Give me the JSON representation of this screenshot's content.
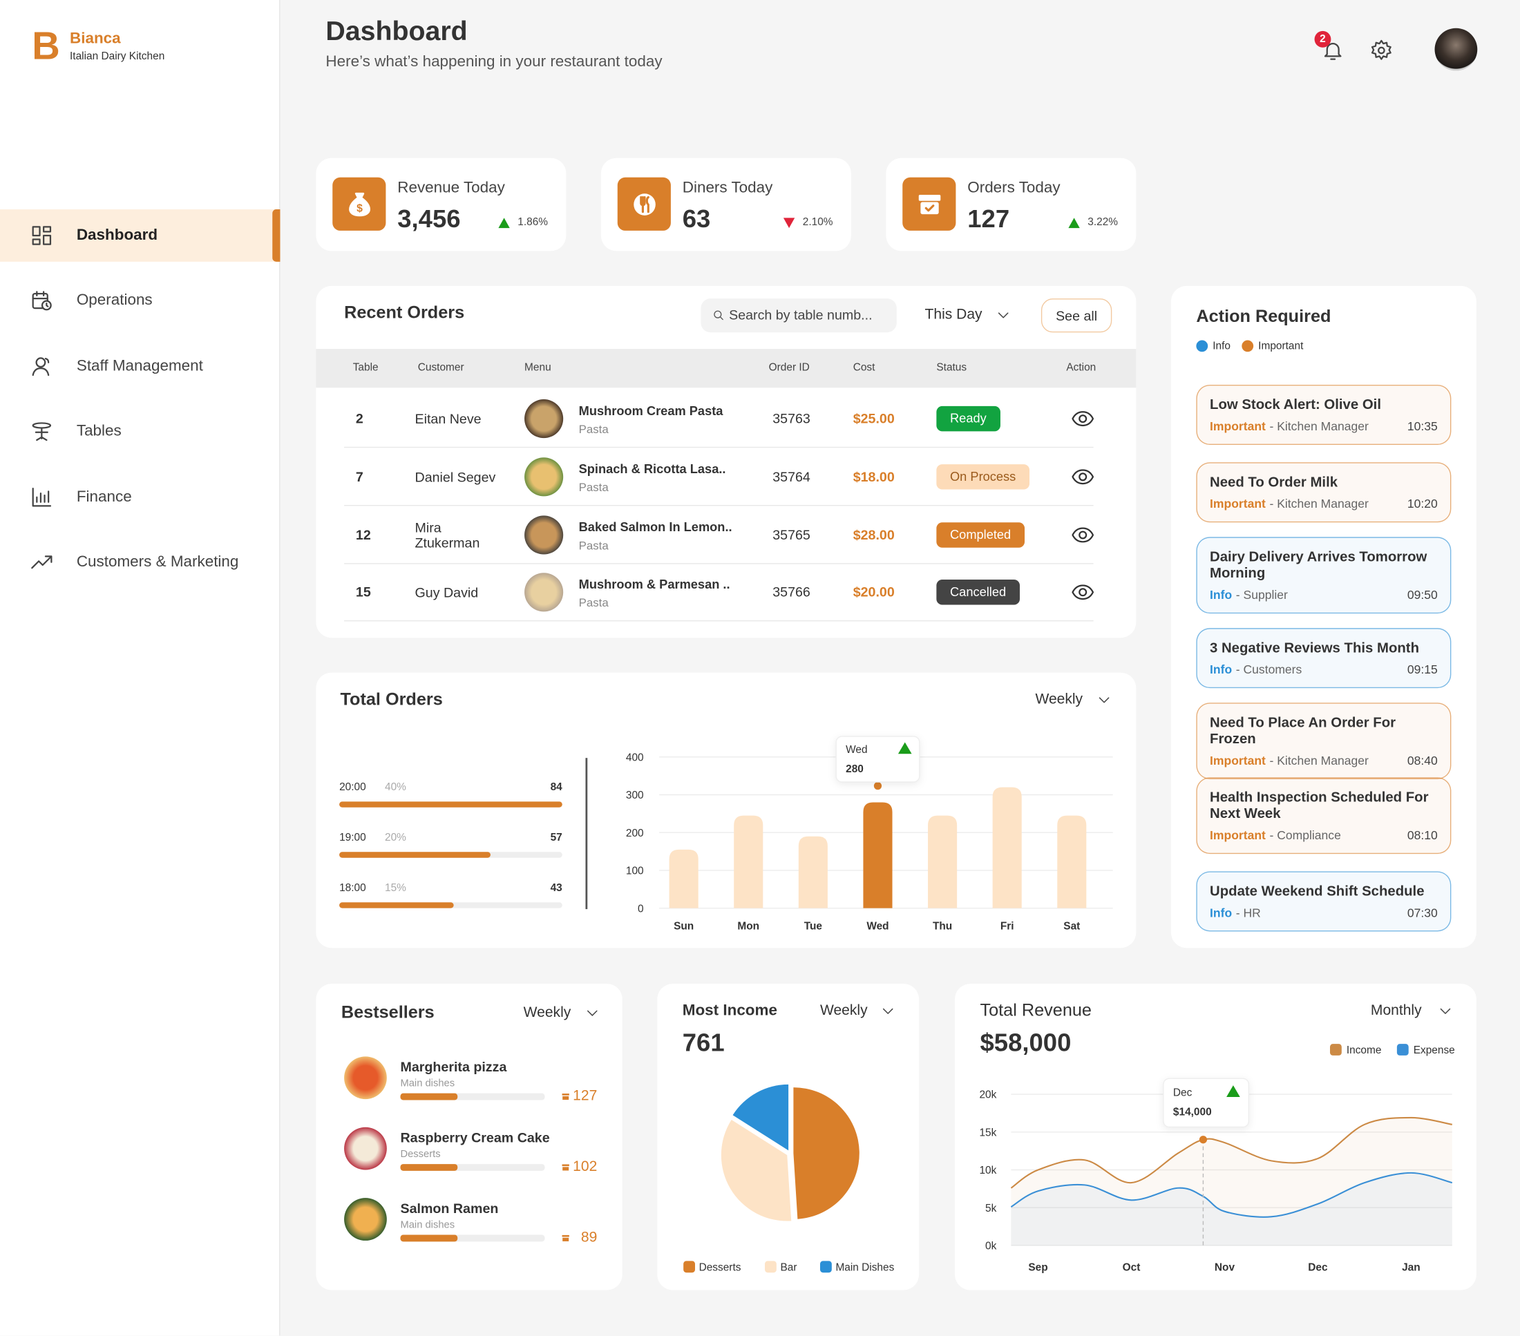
{
  "brand": {
    "initial": "B",
    "name": "Bianca",
    "tagline": "Italian Dairy Kitchen"
  },
  "nav": [
    {
      "label": "Dashboard",
      "active": true
    },
    {
      "label": "Operations",
      "active": false
    },
    {
      "label": "Staff Management",
      "active": false
    },
    {
      "label": "Tables",
      "active": false
    },
    {
      "label": "Finance",
      "active": false
    },
    {
      "label": "Customers & Marketing",
      "active": false
    }
  ],
  "header": {
    "title": "Dashboard",
    "subtitle": "Here’s what’s happening in your restaurant today",
    "notifications": 2
  },
  "stats": [
    {
      "label": "Revenue Today",
      "value": "3,456",
      "change": "1.86%",
      "trend": "up"
    },
    {
      "label": "Diners Today",
      "value": "63",
      "change": "2.10%",
      "trend": "down"
    },
    {
      "label": "Orders Today",
      "value": "127",
      "change": "3.22%",
      "trend": "up"
    }
  ],
  "recent_orders": {
    "title": "Recent Orders",
    "search_placeholder": "Search by table numb...",
    "filter": "This Day",
    "see_all": "See all",
    "columns": [
      "Table",
      "Customer",
      "Menu",
      "Order ID",
      "Cost",
      "Status",
      "Action"
    ],
    "rows": [
      {
        "table": "2",
        "customer": "Eitan Neve",
        "menu": "Mushroom Cream Pasta",
        "category": "Pasta",
        "order_id": "35763",
        "cost": "$25.00",
        "status": "Ready",
        "status_bg": "#12a340",
        "status_fg": "#ffffff"
      },
      {
        "table": "7",
        "customer": "Daniel Segev",
        "menu": "Spinach & Ricotta Lasa..",
        "category": "Pasta",
        "order_id": "35764",
        "cost": "$18.00",
        "status": "On Process",
        "status_bg": "#fddbb8",
        "status_fg": "#9a5a1c"
      },
      {
        "table": "12",
        "customer": "Mira Ztukerman",
        "menu": "Baked Salmon In Lemon..",
        "category": "Pasta",
        "order_id": "35765",
        "cost": "$28.00",
        "status": "Completed",
        "status_bg": "#d97f2a",
        "status_fg": "#ffffff"
      },
      {
        "table": "15",
        "customer": "Guy David",
        "menu": "Mushroom & Parmesan ..",
        "category": "Pasta",
        "order_id": "35766",
        "cost": "$20.00",
        "status": "Cancelled",
        "status_bg": "#444444",
        "status_fg": "#ffffff"
      }
    ]
  },
  "total_orders": {
    "hours": [
      {
        "time": "20:00",
        "share": "40%",
        "count": 84
      },
      {
        "time": "19:00",
        "share": "20%",
        "count": 57
      },
      {
        "time": "18:00",
        "share": "15%",
        "count": 43
      }
    ]
  },
  "action_required": {
    "title": "Action Required",
    "legend": [
      {
        "label": "Info",
        "color": "#2b8fd6"
      },
      {
        "label": "Important",
        "color": "#d97f2a"
      }
    ],
    "items": [
      {
        "title": "Low Stock Alert: Olive Oil",
        "level": "Important",
        "source": "- Kitchen Manager",
        "time": "10:35",
        "color": "#d97f2a"
      },
      {
        "title": "Need To Order Milk",
        "level": "Important",
        "source": "- Kitchen Manager",
        "time": "10:20",
        "color": "#d97f2a"
      },
      {
        "title": "Dairy Delivery Arrives Tomorrow Morning",
        "level": "Info",
        "source": "- Supplier",
        "time": "09:50",
        "color": "#2b8fd6"
      },
      {
        "title": "3 Negative Reviews This Month",
        "level": "Info",
        "source": "- Customers",
        "time": "09:15",
        "color": "#2b8fd6"
      },
      {
        "title": "Need To Place An Order For Frozen",
        "level": "Important",
        "source": "- Kitchen Manager",
        "time": "08:40",
        "color": "#d97f2a"
      },
      {
        "title": "Health Inspection Scheduled For Next Week",
        "level": "Important",
        "source": "- Compliance",
        "time": "08:10",
        "color": "#d97f2a"
      },
      {
        "title": "Update Weekend Shift Schedule",
        "level": "Info",
        "source": "- HR",
        "time": "07:30",
        "color": "#2b8fd6"
      }
    ]
  },
  "bestsellers": {
    "title": "Bestsellers",
    "filter": "Weekly",
    "items": [
      {
        "name": "Margherita pizza",
        "category": "Main dishes",
        "count": 127
      },
      {
        "name": "Raspberry Cream Cake",
        "category": "Desserts",
        "count": 102
      },
      {
        "name": "Salmon Ramen",
        "category": "Main dishes",
        "count": 89
      }
    ]
  },
  "chart_data": [
    {
      "type": "bar",
      "title": "Total Orders",
      "filter": "Weekly",
      "categories": [
        "Sun",
        "Mon",
        "Tue",
        "Wed",
        "Thu",
        "Fri",
        "Sat"
      ],
      "values": [
        155,
        245,
        190,
        280,
        245,
        320,
        245
      ],
      "color": "#fde3c6",
      "highlight": "Wed",
      "highlight_color": "#d97f2a",
      "ylim": [
        0,
        400
      ],
      "yticks": [
        0,
        100,
        200,
        300,
        400
      ],
      "grid": true
    },
    {
      "type": "pie",
      "title": "Most Income",
      "filter": "Weekly",
      "total": 761,
      "categories": [
        "Desserts",
        "Bar",
        "Main Dishes"
      ],
      "values": [
        49,
        35,
        16
      ],
      "colors": [
        "#d97f2a",
        "#fde3c6",
        "#2b8fd6"
      ],
      "legend": "bottom"
    },
    {
      "type": "line",
      "title": "Total Revenue",
      "filter": "Monthly",
      "total": "$58,000",
      "x": [
        -0.29,
        0,
        0.5,
        1,
        1.5,
        1.77,
        2,
        2.5,
        3,
        3.5,
        4,
        4.44
      ],
      "xlim": [
        -0.29,
        4.44
      ],
      "xticks": [
        {
          "value": 0,
          "label": "Sep"
        },
        {
          "value": 1,
          "label": "Oct"
        },
        {
          "value": 2,
          "label": "Nov"
        },
        {
          "value": 3,
          "label": "Dec"
        },
        {
          "value": 4,
          "label": "Jan"
        }
      ],
      "ylim": [
        0,
        20000
      ],
      "yticks": [
        {
          "value": 0,
          "label": "0k"
        },
        {
          "value": 5000,
          "label": "5k"
        },
        {
          "value": 10000,
          "label": "10k"
        },
        {
          "value": 15000,
          "label": "15k"
        },
        {
          "value": 20000,
          "label": "20k"
        }
      ],
      "grid": true,
      "legend": "top-right",
      "tooltip_label": "Dec",
      "series": [
        {
          "name": "Income",
          "color": "#cc8a45",
          "values": [
            7600,
            10000,
            11300,
            8300,
            12200,
            14000,
            13600,
            11200,
            11500,
            16000,
            16900,
            16000
          ],
          "value_labels": [
            null,
            null,
            null,
            null,
            null,
            "$14,000",
            null,
            null,
            null,
            null,
            null,
            null
          ]
        },
        {
          "name": "Expense",
          "color": "#3a8fd6",
          "values": [
            5100,
            7200,
            8000,
            6000,
            7600,
            6500,
            4500,
            3800,
            5500,
            8300,
            9600,
            8300
          ]
        }
      ]
    }
  ]
}
